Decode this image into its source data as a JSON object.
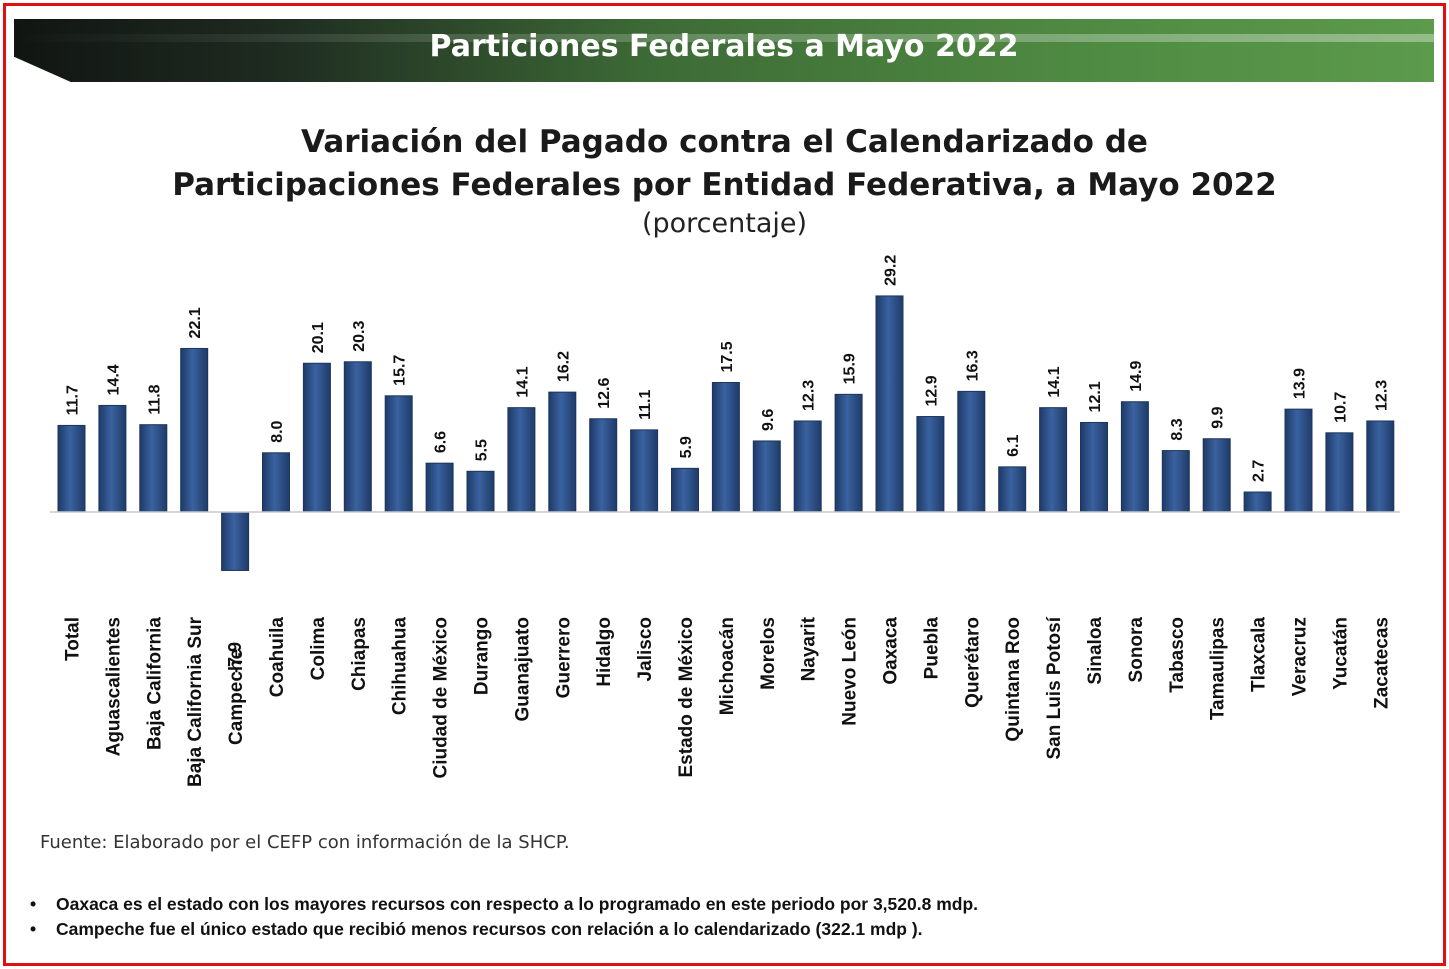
{
  "header": {
    "banner_title": "Particiones Federales a Mayo 2022"
  },
  "colors": {
    "frame": "#e01010",
    "bar": "#2d4f86",
    "bar_edge": "#1c355d",
    "banner_dark": "#111512",
    "banner_green": "#4f8a42"
  },
  "chart_data": {
    "type": "bar",
    "title_line1": "Variación del Pagado contra el Calendarizado de",
    "title_line2": "Participaciones Federales por Entidad Federativa, a Mayo 2022",
    "subtitle": "(porcentaje)",
    "grid": false,
    "categories": [
      "Total",
      "Aguascalientes",
      "Baja California",
      "Baja California Sur",
      "Campeche",
      "Coahuila",
      "Colima",
      "Chiapas",
      "Chihuahua",
      "Ciudad de México",
      "Durango",
      "Guanajuato",
      "Guerrero",
      "Hidalgo",
      "Jalisco",
      "Estado de México",
      "Michoacán",
      "Morelos",
      "Nayarit",
      "Nuevo León",
      "Oaxaca",
      "Puebla",
      "Querétaro",
      "Quintana Roo",
      "San Luis Potosí",
      "Sinaloa",
      "Sonora",
      "Tabasco",
      "Tamaulipas",
      "Tlaxcala",
      "Veracruz",
      "Yucatán",
      "Zacatecas"
    ],
    "values": [
      11.7,
      14.4,
      11.8,
      22.1,
      -7.9,
      8.0,
      20.1,
      20.3,
      15.7,
      6.6,
      5.5,
      14.1,
      16.2,
      12.6,
      11.1,
      5.9,
      17.5,
      9.6,
      12.3,
      15.9,
      29.2,
      12.9,
      16.3,
      6.1,
      14.1,
      12.1,
      14.9,
      8.3,
      9.9,
      2.7,
      13.9,
      10.7,
      12.3
    ],
    "value_labels": [
      "11.7",
      "14.4",
      "11.8",
      "22.1",
      "-7.9",
      "8.0",
      "20.1",
      "20.3",
      "15.7",
      "6.6",
      "5.5",
      "14.1",
      "16.2",
      "12.6",
      "11.1",
      "5.9",
      "17.5",
      "9.6",
      "12.3",
      "15.9",
      "29.2",
      "12.9",
      "16.3",
      "6.1",
      "14.1",
      "12.1",
      "14.9",
      "8.3",
      "9.9",
      "2.7",
      "13.9",
      "10.7",
      "12.3"
    ]
  },
  "source": "Fuente: Elaborado por el CEFP con información de la SHCP.",
  "notes": [
    {
      "bullet": "•",
      "text": "Oaxaca es el estado con los mayores recursos con respecto a lo programado en este periodo por 3,520.8 mdp."
    },
    {
      "bullet": "•",
      "text": "Campeche fue el único estado que recibió menos recursos  con relación a lo calendarizado (322.1 mdp )."
    }
  ]
}
